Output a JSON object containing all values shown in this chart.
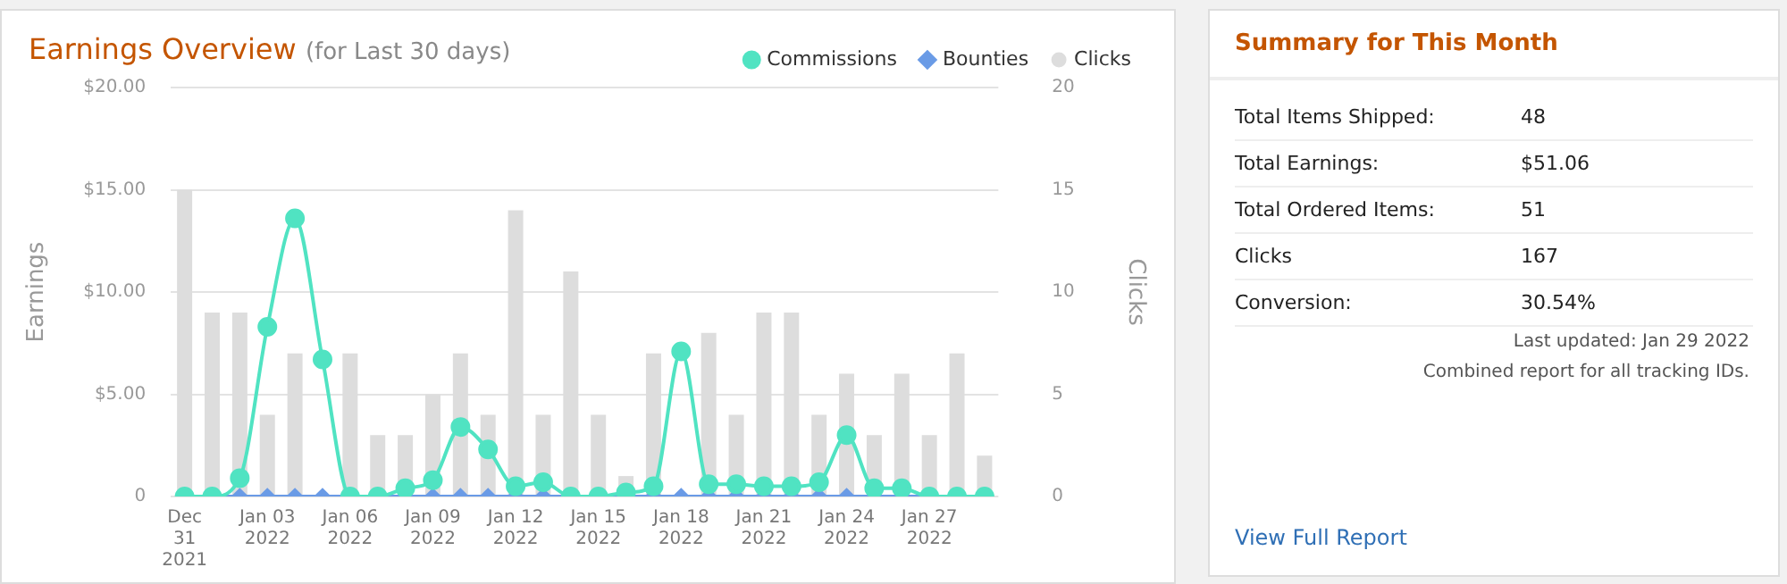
{
  "chart_data": [
    {
      "type": "bar",
      "title": "Earnings Overview",
      "subtitle": "(for Last 30 days)",
      "ylabel": "Earnings",
      "y2label": "Clicks",
      "categories": [
        "Dec\n31\n2021",
        null,
        null,
        "Jan 03\n2022",
        null,
        null,
        "Jan 06\n2022",
        null,
        null,
        "Jan 09\n2022",
        null,
        null,
        "Jan 12\n2022",
        null,
        null,
        "Jan 15\n2022",
        null,
        null,
        "Jan 18\n2022",
        null,
        null,
        "Jan 21\n2022",
        null,
        null,
        "Jan 24\n2022",
        null,
        null,
        "Jan 27\n2022",
        null,
        null
      ],
      "series": [
        {
          "name": "Commissions",
          "type": "line",
          "marker": "circle",
          "color": "#50e3c2",
          "values": [
            0,
            0,
            0.9,
            8.3,
            13.6,
            6.7,
            0,
            0,
            0.4,
            0.8,
            3.4,
            2.3,
            0.5,
            0.7,
            0,
            0,
            0.2,
            0.5,
            7.1,
            0.6,
            0.6,
            0.5,
            0.5,
            0.7,
            3.0,
            0.4,
            0.4,
            0,
            0,
            0
          ]
        },
        {
          "name": "Bounties",
          "type": "line",
          "marker": "diamond",
          "color": "#6a9be6",
          "values": [
            0,
            0,
            0,
            0,
            0,
            0,
            0,
            0,
            0,
            0,
            0,
            0,
            0,
            0,
            0,
            0,
            0,
            0,
            0,
            0,
            0,
            0,
            0,
            0,
            0,
            0,
            0,
            0,
            0,
            0
          ]
        },
        {
          "name": "Clicks",
          "type": "bar",
          "axis": "y2",
          "color": "#dddddd",
          "values": [
            15,
            9,
            9,
            4,
            7,
            0,
            7,
            3,
            3,
            5,
            7,
            4,
            14,
            4,
            11,
            4,
            1,
            7,
            0,
            8,
            4,
            9,
            9,
            4,
            6,
            3,
            6,
            3,
            7,
            2
          ]
        }
      ],
      "ylim": [
        0,
        20
      ],
      "yticks": [
        {
          "value": 0,
          "label": "0"
        },
        {
          "value": 5,
          "label": "$5.00"
        },
        {
          "value": 10,
          "label": "$10.00"
        },
        {
          "value": 15,
          "label": "$15.00"
        },
        {
          "value": 20,
          "label": "$20.00"
        }
      ],
      "y2lim": [
        0,
        20
      ],
      "y2ticks": [
        0,
        5,
        10,
        15,
        20
      ],
      "grid": "y",
      "legend": "top right"
    },
    {
      "type": "other",
      "title": "Summary for This Month",
      "annotations": [
        "Total Items Shipped:",
        "48",
        "Total Earnings:",
        "$51.06",
        "Total Ordered Items:",
        "51",
        "Clicks",
        "167",
        "Conversion:",
        "30.54%",
        "Last updated: Jan 29 2022",
        "Combined report for all tracking IDs.",
        "View Full Report"
      ]
    }
  ]
}
